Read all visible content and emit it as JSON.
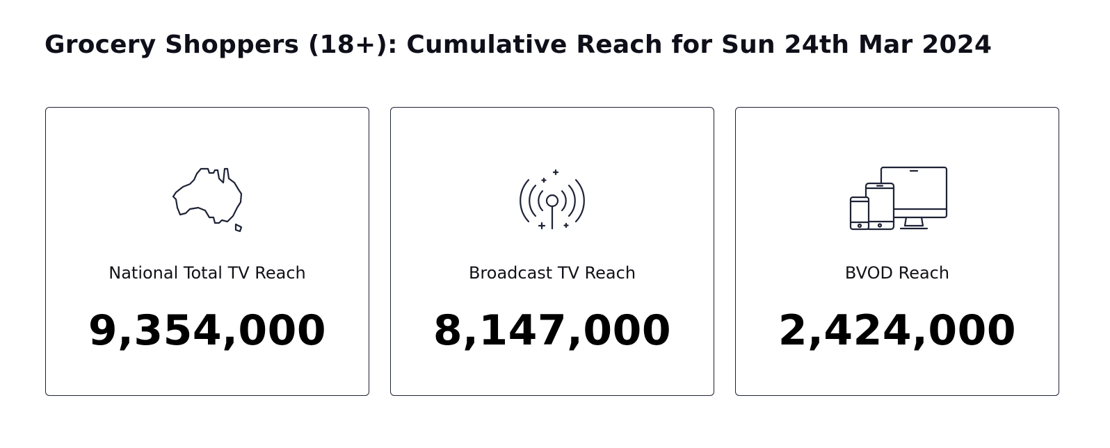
{
  "title": "Grocery Shoppers (18+): Cumulative Reach for Sun 24th Mar 2024",
  "colors": {
    "border": "#1e2236",
    "icon_stroke": "#1e2236",
    "text": "#000000"
  },
  "cards": [
    {
      "icon": "australia-map-icon",
      "label": "National Total TV Reach",
      "value": "9,354,000"
    },
    {
      "icon": "broadcast-antenna-icon",
      "label": "Broadcast TV Reach",
      "value": "8,147,000"
    },
    {
      "icon": "devices-icon",
      "label": "BVOD Reach",
      "value": "2,424,000"
    }
  ]
}
